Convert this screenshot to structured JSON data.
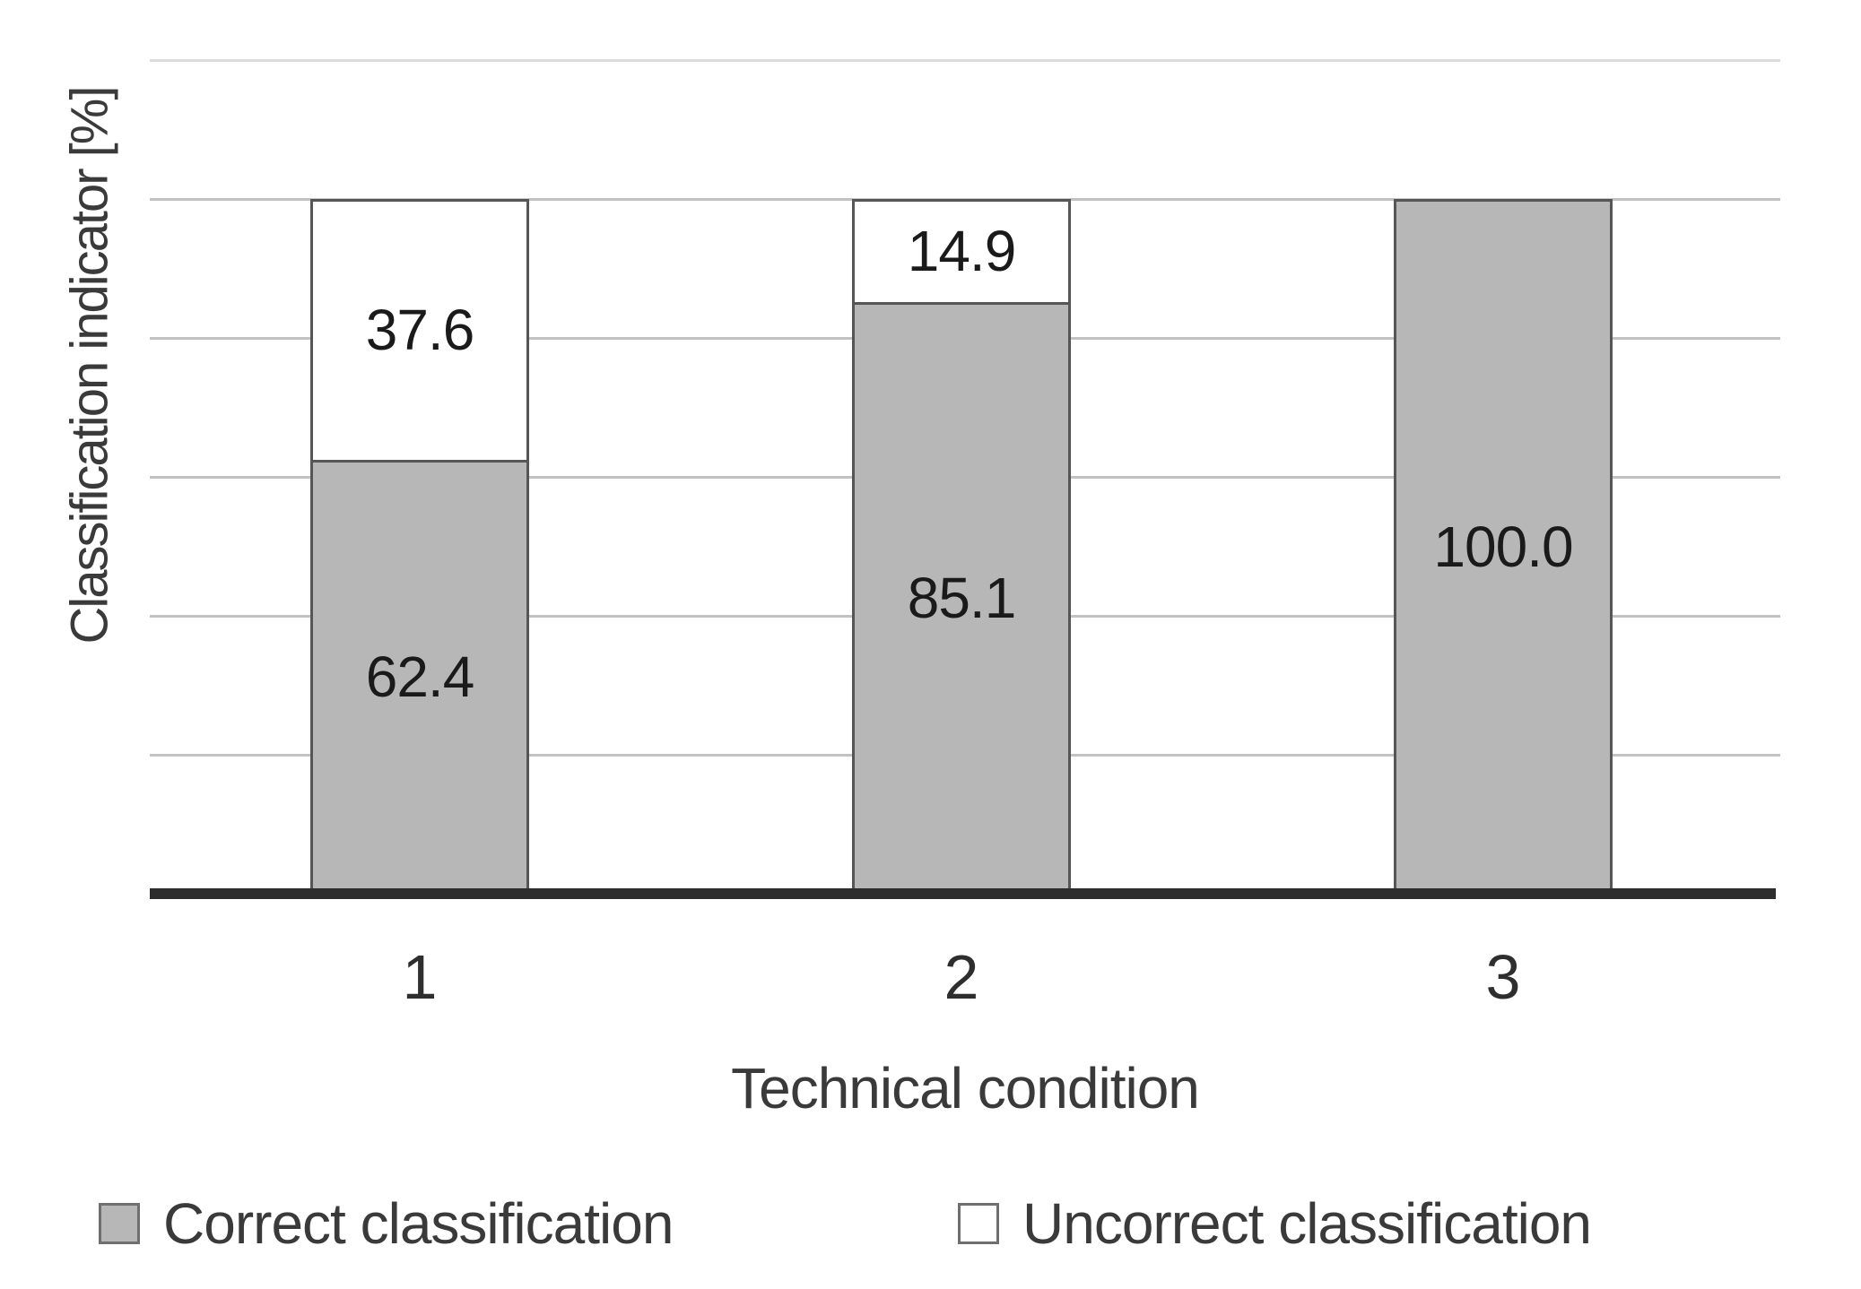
{
  "colors": {
    "bar_fill": "#b7b7b7",
    "white_fill": "#ffffff",
    "bar_border": "#565656",
    "axis_line": "#2d2d2d",
    "gridline": "#c2c2c2",
    "gridline_top": "#dcdcdc",
    "data_label_text": "#1a1a1a",
    "tick_text": "#2e2e2e",
    "axis_title_text": "#3a3a3a",
    "legend_swatch_border": "#6f6f6f"
  },
  "chart_data": {
    "type": "bar",
    "stacked": true,
    "title": "",
    "xlabel": "Technical condition",
    "ylabel": "Classification indicator [%]",
    "categories": [
      "1",
      "2",
      "3"
    ],
    "series": [
      {
        "name": "Correct classification",
        "swatch": "gray",
        "values": [
          62.4,
          85.1,
          100.0
        ]
      },
      {
        "name": "Uncorrect classification",
        "swatch": "white",
        "values": [
          37.6,
          14.9,
          0.0
        ]
      }
    ],
    "segment_labels": [
      [
        "62.4",
        "37.6"
      ],
      [
        "85.1",
        "14.9"
      ],
      [
        "100.0",
        ""
      ]
    ],
    "ylim": [
      0,
      120
    ],
    "gridline_step_pct": 20,
    "grid": true,
    "y_tick_labels_visible": false,
    "legend_position": "bottom"
  }
}
